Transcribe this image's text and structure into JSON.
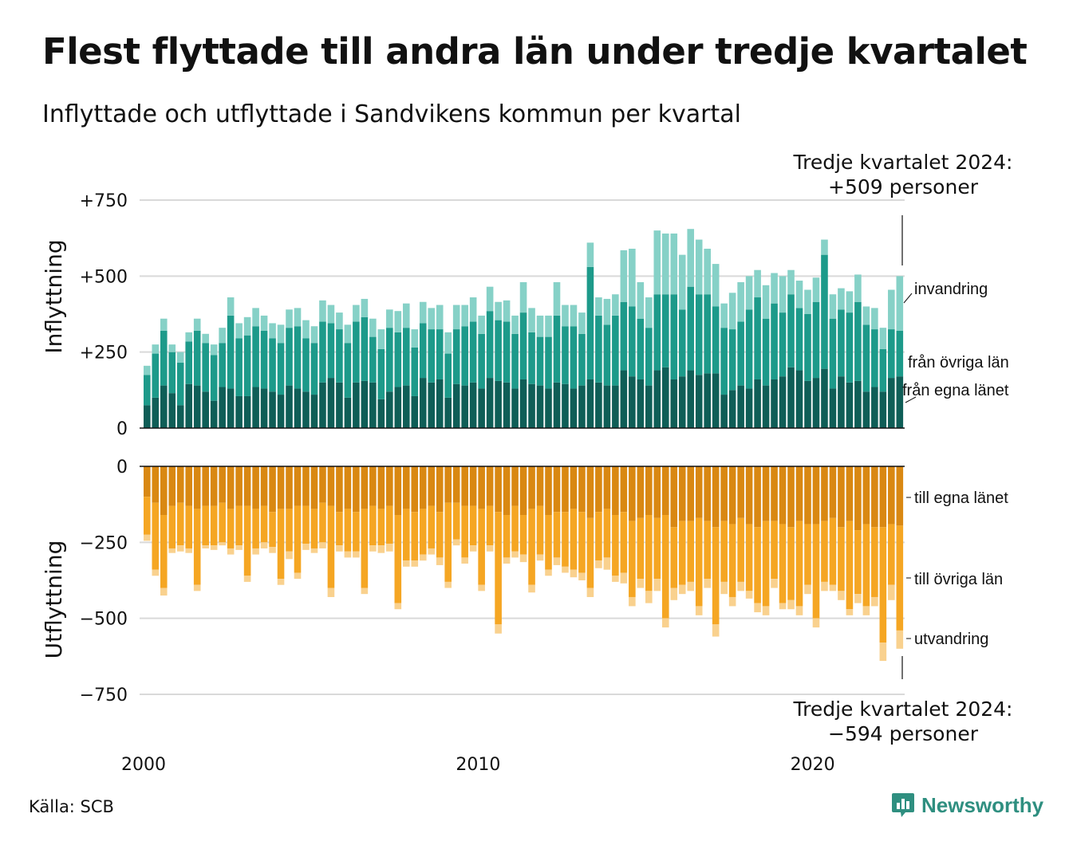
{
  "title": "Flest flyttade till andra län under tredje kvartalet",
  "subtitle": "Inflyttade och utflyttade i Sandvikens kommun per kvartal",
  "source": "Källa: SCB",
  "logo_text": "Newsworthy",
  "colors": {
    "in_own": "#0f5e57",
    "in_other": "#1d9a8a",
    "in_immig": "#86d1c7",
    "out_own": "#d98812",
    "out_other": "#f5a623",
    "out_emig": "#f9d18e",
    "grid": "#d9d9d9"
  },
  "chart_data": {
    "type": "bar",
    "stacked": true,
    "x_start": "2000 Q1",
    "x_ticks": [
      "2000",
      "2010",
      "2020"
    ],
    "panels": [
      {
        "name": "Inflyttning",
        "ylabel": "Inflyttning",
        "ylim": [
          0,
          750
        ],
        "yticks": [
          "0",
          "+250",
          "+500",
          "+750"
        ],
        "annotation_line1": "Tredje kvartalet 2024:",
        "annotation_line2": "+509 personer",
        "series": [
          {
            "name": "från egna länet",
            "values": [
              75,
              100,
              140,
              115,
              75,
              145,
              140,
              120,
              90,
              135,
              130,
              105,
              105,
              135,
              130,
              120,
              110,
              140,
              130,
              120,
              110,
              150,
              165,
              150,
              100,
              150,
              155,
              150,
              95,
              120,
              135,
              140,
              105,
              165,
              150,
              160,
              100,
              145,
              140,
              150,
              130,
              165,
              155,
              150,
              130,
              160,
              145,
              140,
              130,
              150,
              145,
              130,
              140,
              160,
              150,
              140,
              140,
              190,
              170,
              160,
              140,
              190,
              200,
              160,
              170,
              190,
              175,
              180,
              180,
              110,
              125,
              140,
              130,
              160,
              140,
              160,
              170,
              200,
              190,
              155,
              165,
              195,
              130,
              170,
              150,
              155,
              120,
              135,
              120,
              165,
              170
            ]
          },
          {
            "name": "från övriga län",
            "values": [
              100,
              145,
              180,
              135,
              140,
              140,
              180,
              160,
              150,
              145,
              240,
              190,
              200,
              200,
              190,
              175,
              170,
              190,
              205,
              175,
              170,
              200,
              180,
              175,
              180,
              200,
              210,
              150,
              165,
              210,
              180,
              190,
              160,
              180,
              175,
              165,
              145,
              180,
              195,
              200,
              180,
              220,
              200,
              200,
              180,
              220,
              170,
              160,
              170,
              220,
              190,
              205,
              170,
              370,
              220,
              200,
              230,
              225,
              230,
              200,
              190,
              250,
              240,
              280,
              220,
              275,
              265,
              260,
              220,
              220,
              200,
              210,
              260,
              270,
              220,
              250,
              210,
              240,
              205,
              220,
              250,
              375,
              230,
              220,
              230,
              260,
              220,
              190,
              140,
              160,
              150
            ]
          },
          {
            "name": "invandring",
            "values": [
              30,
              30,
              40,
              25,
              35,
              30,
              40,
              30,
              35,
              50,
              60,
              50,
              60,
              60,
              50,
              50,
              60,
              60,
              60,
              60,
              55,
              70,
              60,
              55,
              60,
              55,
              60,
              60,
              65,
              60,
              70,
              80,
              60,
              70,
              70,
              80,
              70,
              80,
              70,
              80,
              60,
              80,
              60,
              70,
              60,
              100,
              80,
              70,
              70,
              110,
              70,
              70,
              70,
              80,
              60,
              85,
              70,
              170,
              190,
              120,
              100,
              210,
              200,
              200,
              180,
              190,
              180,
              150,
              140,
              80,
              120,
              130,
              110,
              90,
              110,
              100,
              120,
              80,
              90,
              80,
              80,
              50,
              80,
              70,
              70,
              90,
              60,
              70,
              70,
              130,
              180
            ]
          }
        ]
      },
      {
        "name": "Utflyttning",
        "ylabel": "Utflyttning",
        "ylim": [
          -750,
          0
        ],
        "yticks": [
          "0",
          "−250",
          "−500",
          "−750"
        ],
        "annotation_line1": "Tredje kvartalet 2024:",
        "annotation_line2": "−594 personer",
        "series": [
          {
            "name": "till egna länet",
            "values": [
              -100,
              -120,
              -160,
              -130,
              -120,
              -130,
              -140,
              -130,
              -130,
              -120,
              -140,
              -130,
              -130,
              -140,
              -130,
              -150,
              -140,
              -140,
              -130,
              -130,
              -140,
              -120,
              -130,
              -150,
              -140,
              -150,
              -140,
              -130,
              -140,
              -130,
              -160,
              -140,
              -150,
              -140,
              -130,
              -150,
              -120,
              -120,
              -130,
              -130,
              -140,
              -130,
              -150,
              -160,
              -130,
              -160,
              -140,
              -130,
              -160,
              -150,
              -150,
              -140,
              -150,
              -170,
              -150,
              -140,
              -160,
              -150,
              -180,
              -170,
              -160,
              -170,
              -160,
              -200,
              -180,
              -180,
              -170,
              -180,
              -200,
              -180,
              -190,
              -170,
              -190,
              -200,
              -180,
              -180,
              -190,
              -200,
              -180,
              -190,
              -190,
              -180,
              -170,
              -200,
              -180,
              -210,
              -190,
              -200,
              -200,
              -190,
              -195
            ]
          },
          {
            "name": "till övriga län",
            "values": [
              -125,
              -220,
              -240,
              -140,
              -140,
              -140,
              -250,
              -130,
              -130,
              -130,
              -130,
              -130,
              -230,
              -130,
              -120,
              -115,
              -230,
              -140,
              -220,
              -125,
              -130,
              -130,
              -270,
              -110,
              -140,
              -130,
              -260,
              -130,
              -120,
              -125,
              -290,
              -170,
              -160,
              -150,
              -140,
              -150,
              -260,
              -120,
              -170,
              -130,
              -250,
              -130,
              -370,
              -140,
              -150,
              -130,
              -250,
              -160,
              -180,
              -150,
              -180,
              -200,
              -200,
              -230,
              -160,
              -160,
              -200,
              -200,
              -250,
              -200,
              -250,
              -200,
              -340,
              -200,
              -210,
              -200,
              -290,
              -190,
              -320,
              -200,
              -240,
              -210,
              -220,
              -250,
              -280,
              -190,
              -260,
              -240,
              -280,
              -200,
              -310,
              -200,
              -220,
              -210,
              -290,
              -210,
              -270,
              -230,
              -380,
              -200,
              -345
            ]
          },
          {
            "name": "utvandring",
            "values": [
              -20,
              -20,
              -25,
              -15,
              -20,
              -15,
              -20,
              -10,
              -15,
              -10,
              -20,
              -15,
              -20,
              -20,
              -20,
              -20,
              -20,
              -25,
              -20,
              -20,
              -15,
              -20,
              -30,
              -20,
              -20,
              -20,
              -20,
              -20,
              -25,
              -25,
              -20,
              -20,
              -20,
              -20,
              -20,
              -25,
              -20,
              -20,
              -20,
              -20,
              -20,
              -20,
              -30,
              -20,
              -20,
              -25,
              -25,
              -20,
              -20,
              -25,
              -20,
              -25,
              -25,
              -30,
              -25,
              -40,
              -20,
              -35,
              -30,
              -30,
              -40,
              -40,
              -30,
              -40,
              -30,
              -30,
              -30,
              -30,
              -40,
              -40,
              -30,
              -30,
              -25,
              -30,
              -30,
              -30,
              -20,
              -30,
              -30,
              -30,
              -30,
              -30,
              -20,
              -30,
              -20,
              -30,
              -30,
              -30,
              -60,
              -50,
              -60
            ]
          }
        ]
      }
    ],
    "series_labels_in": [
      "invandring",
      "från övriga län",
      "från egna länet"
    ],
    "series_labels_out": [
      "till egna länet",
      "till övriga län",
      "utvandring"
    ]
  }
}
